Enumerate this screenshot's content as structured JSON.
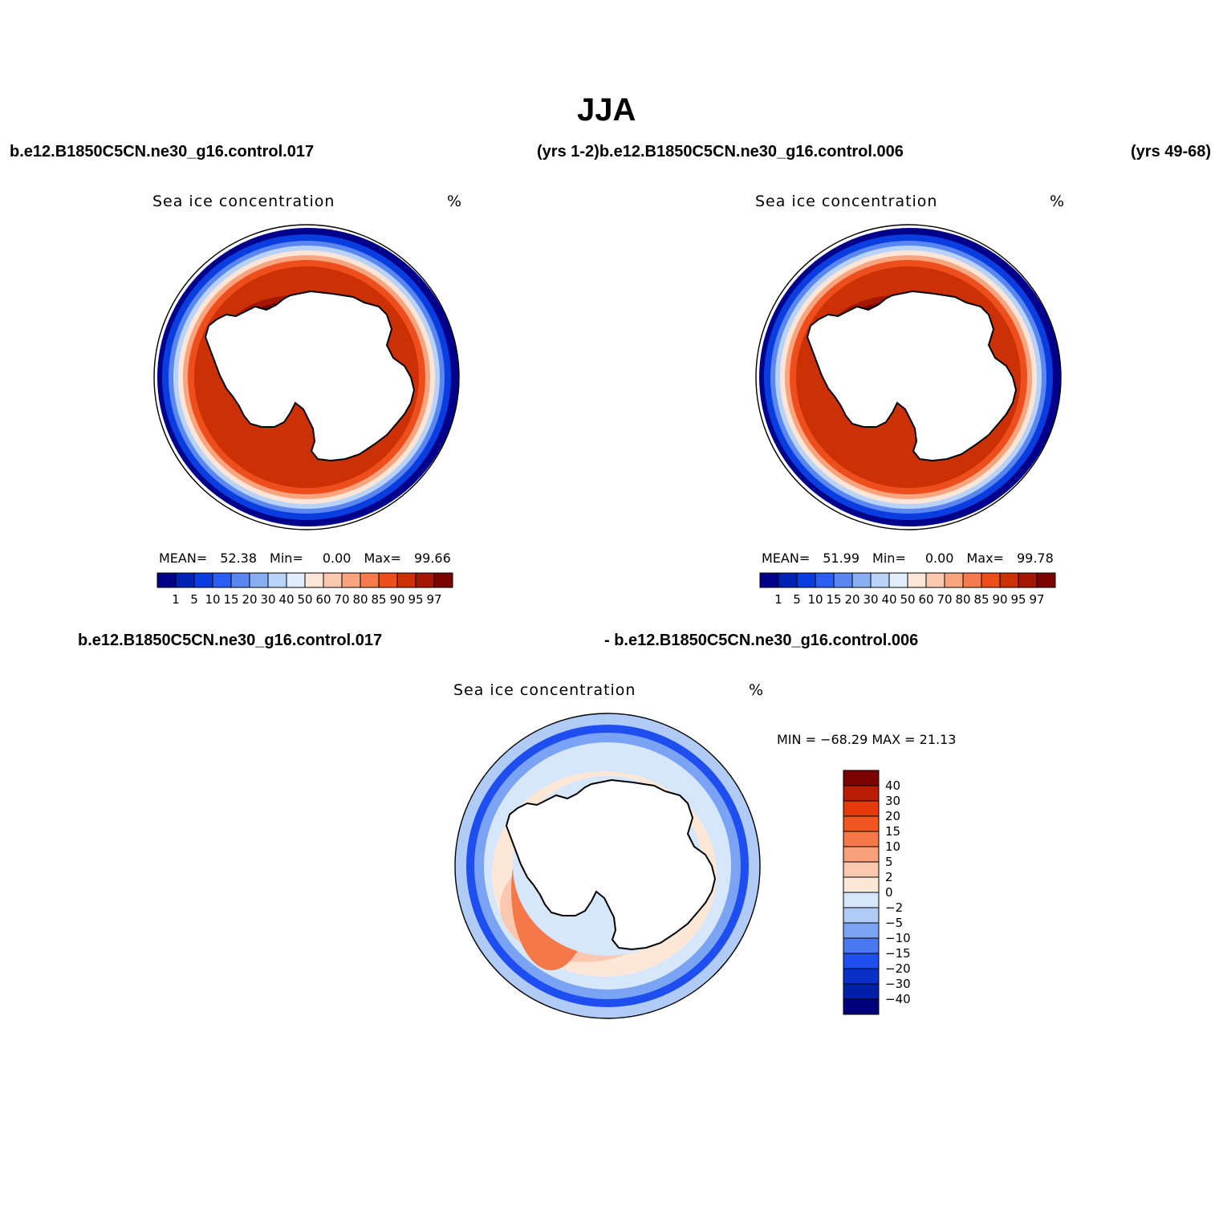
{
  "title": "JJA",
  "top_labels": {
    "left": "b.e12.B1850C5CN.ne30_g16.control.017",
    "middle": "(yrs 1-2)b.e12.B1850C5CN.ne30_g16.control.006",
    "right": "(yrs 49-68)"
  },
  "diff_labels": {
    "left": "b.e12.B1850C5CN.ne30_g16.control.017",
    "right": "- b.e12.B1850C5CN.ne30_g16.control.006"
  },
  "panels": [
    {
      "field": "Sea ice concentration",
      "units": "%",
      "mean_label": "MEAN=",
      "mean": "52.38",
      "min_label": "Min=",
      "min": "0.00",
      "max_label": "Max=",
      "max": "99.66"
    },
    {
      "field": "Sea ice concentration",
      "units": "%",
      "mean_label": "MEAN=",
      "mean": "51.99",
      "min_label": "Min=",
      "min": "0.00",
      "max_label": "Max=",
      "max": "99.78"
    }
  ],
  "diff_panel": {
    "field": "Sea ice concentration",
    "units": "%",
    "minmax": "MIN = −68.29 MAX =  21.13"
  },
  "colorbar_conc": {
    "labels": [
      "1",
      "5",
      "10",
      "15",
      "20",
      "30",
      "40",
      "50",
      "60",
      "70",
      "80",
      "85",
      "90",
      "95",
      "97"
    ],
    "colors": [
      "#00008b",
      "#0022b4",
      "#0a3de0",
      "#2a5ef5",
      "#5a86f0",
      "#8aaef2",
      "#b8d2f8",
      "#e2eefc",
      "#fde6d8",
      "#fbc8b0",
      "#f8a47f",
      "#f57a4c",
      "#ee4e1c",
      "#cc3005",
      "#a41803",
      "#7a0200"
    ]
  },
  "colorbar_diff": {
    "labels": [
      "40",
      "30",
      "20",
      "15",
      "10",
      "5",
      "2",
      "0",
      "−2",
      "−5",
      "−10",
      "−15",
      "−20",
      "−30",
      "−40"
    ],
    "colors": [
      "#7a0200",
      "#b81d04",
      "#e63a0a",
      "#f25620",
      "#f47848",
      "#f7a07a",
      "#fbc7ae",
      "#fde8d8",
      "#d6e6fb",
      "#b0ccf6",
      "#7aa3f3",
      "#4a78f2",
      "#1f4ef0",
      "#0a30c8",
      "#001fa8",
      "#00007a"
    ]
  }
}
